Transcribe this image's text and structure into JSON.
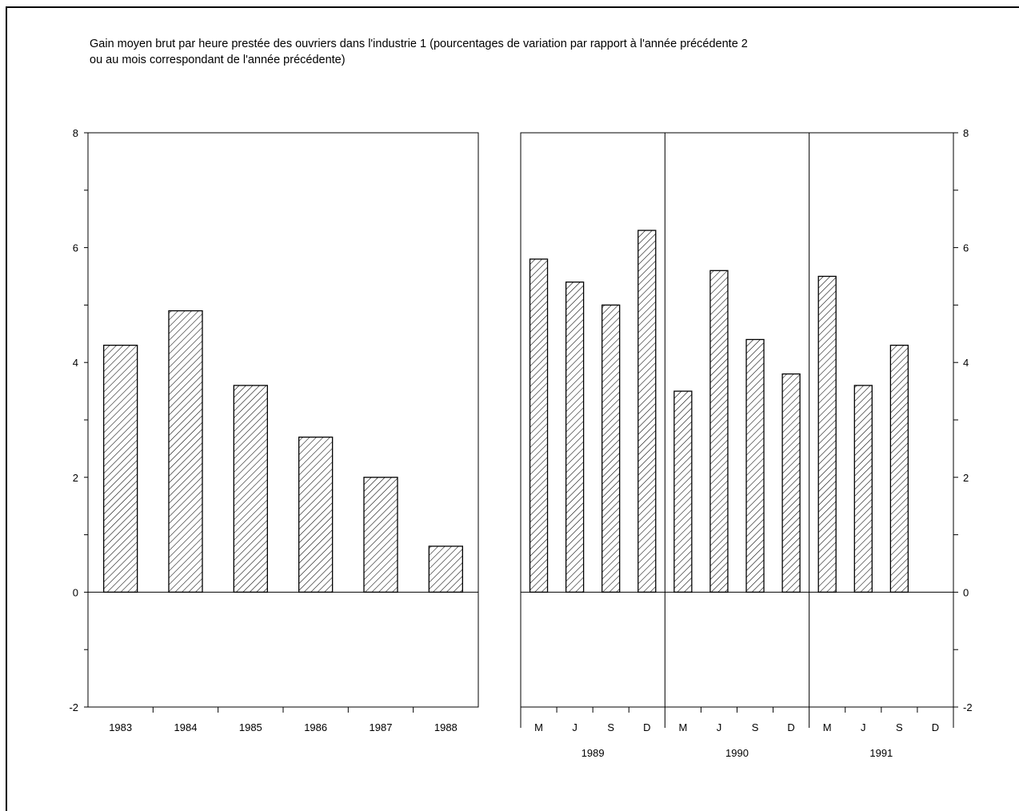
{
  "title_line1": "Gain moyen brut par heure prestée des ouvriers dans l'industrie 1  (pourcentages de variation par rapport à l'année précédente 2",
  "title_line2": "ou au mois correspondant de l'année précédente)",
  "chart_data": [
    {
      "type": "bar",
      "title": "Gain moyen brut par heure prestée des ouvriers dans l'industrie 1  (pourcentages de variation par rapport à l'année précédente 2 ou au mois correspondant de l'année précédente)",
      "categories": [
        "1983",
        "1984",
        "1985",
        "1986",
        "1987",
        "1988"
      ],
      "values": [
        4.3,
        4.9,
        3.6,
        2.7,
        2.0,
        0.8
      ],
      "ylim": [
        -2,
        8
      ],
      "yticks": [
        "-2",
        "0",
        "2",
        "4",
        "6",
        "8"
      ],
      "grid": false
    },
    {
      "type": "bar",
      "groups": [
        {
          "label": "1989",
          "categories": [
            "M",
            "J",
            "S",
            "D"
          ],
          "values": [
            5.8,
            5.4,
            5.0,
            6.3
          ]
        },
        {
          "label": "1990",
          "categories": [
            "M",
            "J",
            "S",
            "D"
          ],
          "values": [
            3.5,
            5.6,
            4.4,
            3.8
          ]
        },
        {
          "label": "1991",
          "categories": [
            "M",
            "J",
            "S",
            "D"
          ],
          "values": [
            5.5,
            3.6,
            4.3,
            null
          ]
        }
      ],
      "ylim": [
        -2,
        8
      ],
      "yticks": [
        "-2",
        "0",
        "2",
        "4",
        "6",
        "8"
      ],
      "grid": false
    }
  ]
}
